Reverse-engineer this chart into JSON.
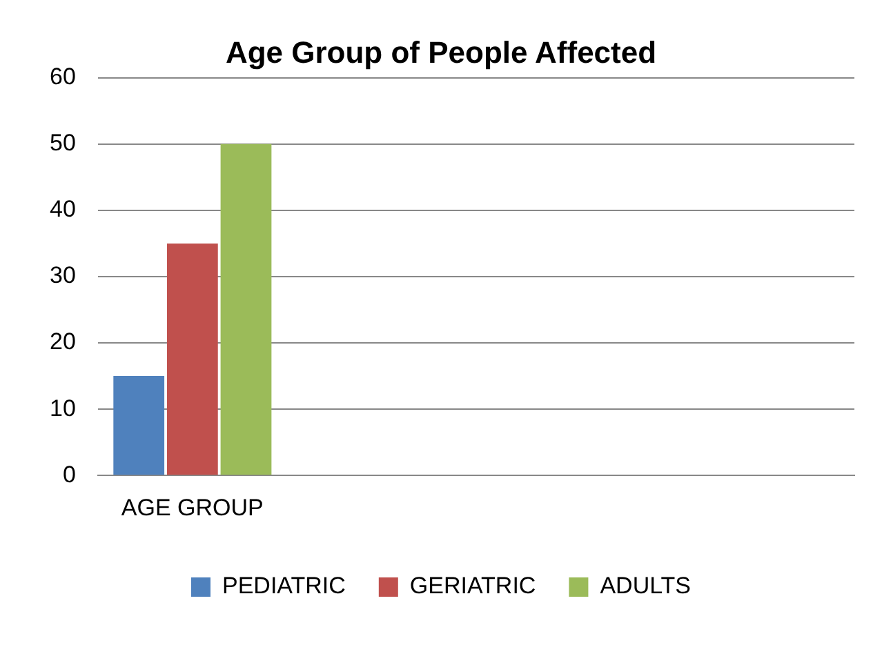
{
  "chart_data": {
    "type": "bar",
    "title": "Age Group of People Affected",
    "categories": [
      "AGE GROUP",
      null,
      null,
      null
    ],
    "series": [
      {
        "name": "PEDIATRIC",
        "color": "#4f81bd",
        "values": [
          15,
          null,
          null,
          null
        ]
      },
      {
        "name": "GERIATRIC",
        "color": "#c0504d",
        "values": [
          35,
          null,
          null,
          null
        ]
      },
      {
        "name": "ADULTS",
        "color": "#9bbb59",
        "values": [
          50,
          null,
          null,
          null
        ]
      }
    ],
    "ylim": [
      0,
      60
    ],
    "yticks": [
      0,
      10,
      20,
      30,
      40,
      50,
      60
    ],
    "grid": "y",
    "legend": "bottom"
  }
}
